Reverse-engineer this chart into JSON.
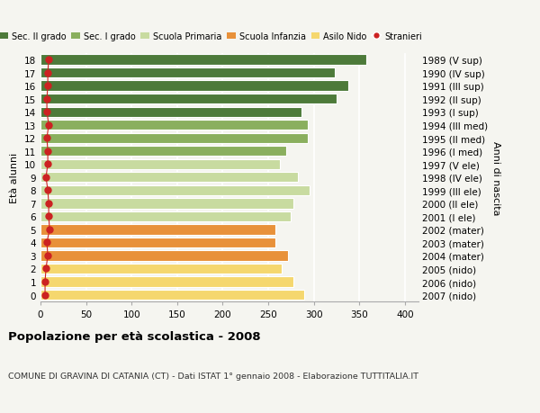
{
  "ages": [
    0,
    1,
    2,
    3,
    4,
    5,
    6,
    7,
    8,
    9,
    10,
    11,
    12,
    13,
    14,
    15,
    16,
    17,
    18
  ],
  "bar_values": [
    290,
    278,
    265,
    272,
    258,
    258,
    275,
    278,
    295,
    283,
    263,
    270,
    293,
    293,
    287,
    325,
    338,
    323,
    358
  ],
  "stranieri": [
    5,
    5,
    6,
    8,
    7,
    10,
    9,
    9,
    8,
    6,
    8,
    8,
    7,
    9,
    7,
    7,
    8,
    8,
    9
  ],
  "right_labels": [
    "2007 (nido)",
    "2006 (nido)",
    "2005 (nido)",
    "2004 (mater)",
    "2003 (mater)",
    "2002 (mater)",
    "2001 (I ele)",
    "2000 (II ele)",
    "1999 (III ele)",
    "1998 (IV ele)",
    "1997 (V ele)",
    "1996 (I med)",
    "1995 (II med)",
    "1994 (III med)",
    "1993 (I sup)",
    "1992 (II sup)",
    "1991 (III sup)",
    "1990 (IV sup)",
    "1989 (V sup)"
  ],
  "bar_colors": [
    "#f5d76e",
    "#f5d76e",
    "#f5d76e",
    "#e8913a",
    "#e8913a",
    "#e8913a",
    "#c8dba0",
    "#c8dba0",
    "#c8dba0",
    "#c8dba0",
    "#c8dba0",
    "#8aaf5e",
    "#8aaf5e",
    "#8aaf5e",
    "#4d7a3a",
    "#4d7a3a",
    "#4d7a3a",
    "#4d7a3a",
    "#4d7a3a"
  ],
  "legend_labels": [
    "Sec. II grado",
    "Sec. I grado",
    "Scuola Primaria",
    "Scuola Infanzia",
    "Asilo Nido",
    "Stranieri"
  ],
  "legend_colors": [
    "#4d7a3a",
    "#8aaf5e",
    "#c8dba0",
    "#e8913a",
    "#f5d76e",
    "#cc2222"
  ],
  "title": "Popolazione per età scolastica - 2008",
  "subtitle": "COMUNE DI GRAVINA DI CATANIA (CT) - Dati ISTAT 1° gennaio 2008 - Elaborazione TUTTITALIA.IT",
  "ylabel": "Età alunni",
  "right_ylabel": "Anni di nascita",
  "xlabel_ticks": [
    0,
    50,
    100,
    150,
    200,
    250,
    300,
    350,
    400
  ],
  "xlim": [
    0,
    415
  ],
  "bg_color": "#f5f5f0",
  "bar_height": 0.78,
  "stranieri_color": "#cc2222",
  "stranieri_size": 5
}
